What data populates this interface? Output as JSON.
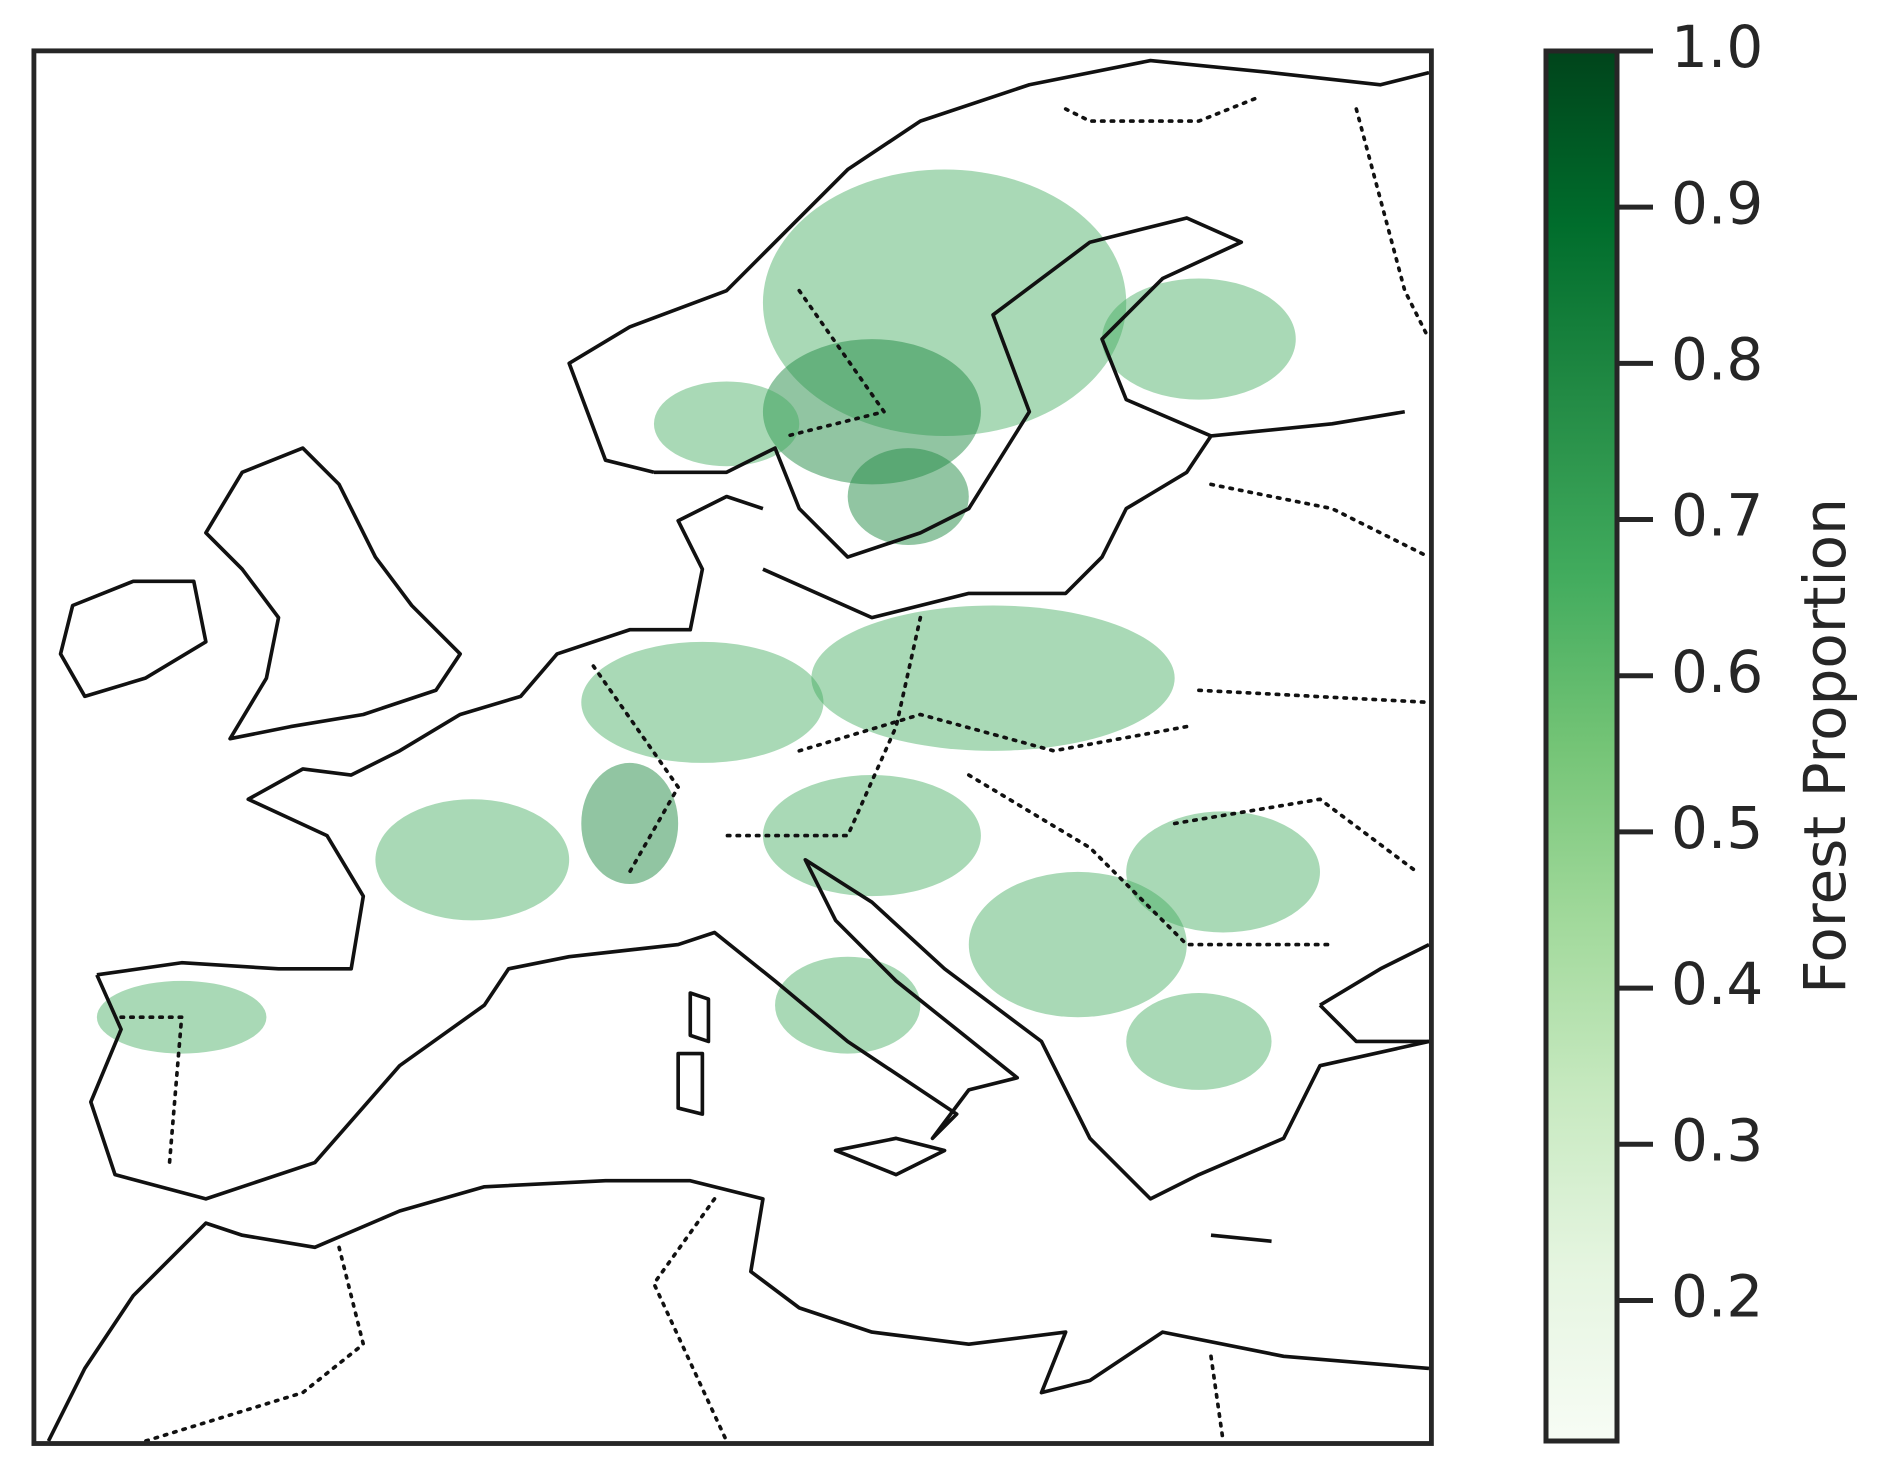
{
  "chart_data": {
    "type": "colorbar-map",
    "colorbar": {
      "label": "Forest Proportion",
      "lim": [
        0.11,
        1.0
      ],
      "ticks": [
        0.2,
        0.3,
        0.4,
        0.5,
        0.6,
        0.7,
        0.8,
        0.9,
        {
          "value": 1.0,
          "label": "1.0"
        }
      ],
      "colors": [
        "#f7fcf5",
        "#e5f5e0",
        "#c7e9c0",
        "#a1d99b",
        "#74c476",
        "#41ab5d",
        "#238b45",
        "#006d2c",
        "#00441b"
      ]
    }
  }
}
